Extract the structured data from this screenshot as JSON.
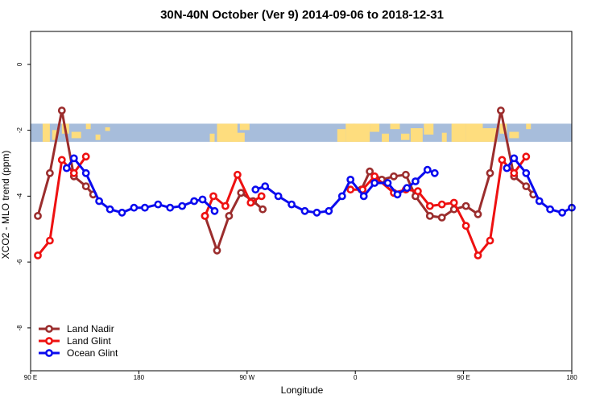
{
  "chart_data": {
    "type": "line",
    "title": "30N-40N October (Ver 9)   2014-09-06 to 2018-12-31",
    "xlabel": "Longitude",
    "ylabel": "XCO2 - MLO trend (ppm)",
    "xlim": [
      90,
      540
    ],
    "ylim": [
      -9.3,
      1.0
    ],
    "x_ticks": [
      {
        "value": 90,
        "label": "90 E"
      },
      {
        "value": 180,
        "label": "180"
      },
      {
        "value": 270,
        "label": "90 W"
      },
      {
        "value": 360,
        "label": "0"
      },
      {
        "value": 450,
        "label": "90 E"
      },
      {
        "value": 540,
        "label": "180"
      }
    ],
    "y_ticks": [
      {
        "value": 0,
        "label": "0"
      },
      {
        "value": -2,
        "label": "-2"
      },
      {
        "value": -4,
        "label": "-4"
      },
      {
        "value": -6,
        "label": "-6"
      },
      {
        "value": -8,
        "label": "-8"
      }
    ],
    "map_band": {
      "y_top": -1.8,
      "y_bottom": -2.35,
      "ocean_color": "#a7bddb",
      "land_color": "#fedd7e"
    },
    "series": [
      {
        "name": "Land Nadir",
        "color": "#9b2d2d",
        "segments": [
          [
            [
              96,
              -4.6
            ],
            [
              106,
              -3.3
            ],
            [
              116,
              -1.4
            ],
            [
              126,
              -3.4
            ],
            [
              136,
              -3.7
            ],
            [
              142,
              -3.95
            ]
          ],
          [
            [
              235,
              -4.6
            ],
            [
              245,
              -5.65
            ],
            [
              255,
              -4.6
            ],
            [
              265,
              -3.9
            ],
            [
              275,
              -4.15
            ],
            [
              283,
              -4.4
            ]
          ],
          [
            [
              365,
              -3.8
            ],
            [
              372,
              -3.25
            ],
            [
              382,
              -3.5
            ],
            [
              392,
              -3.4
            ],
            [
              402,
              -3.35
            ],
            [
              410,
              -4.0
            ],
            [
              422,
              -4.6
            ],
            [
              432,
              -4.65
            ],
            [
              442,
              -4.4
            ],
            [
              452,
              -4.3
            ],
            [
              462,
              -4.55
            ],
            [
              472,
              -3.3
            ],
            [
              481,
              -1.4
            ],
            [
              492,
              -3.4
            ],
            [
              502,
              -3.7
            ],
            [
              508,
              -3.95
            ]
          ]
        ]
      },
      {
        "name": "Land Glint",
        "color": "#ee1111",
        "segments": [
          [
            [
              96,
              -5.8
            ],
            [
              106,
              -5.35
            ],
            [
              116,
              -2.9
            ],
            [
              126,
              -3.3
            ],
            [
              136,
              -2.8
            ]
          ],
          [
            [
              235,
              -4.6
            ],
            [
              242,
              -4.0
            ],
            [
              252,
              -4.3
            ],
            [
              262,
              -3.35
            ],
            [
              273,
              -4.2
            ],
            [
              282,
              -4.0
            ]
          ],
          [
            [
              356,
              -3.8
            ],
            [
              366,
              -3.8
            ],
            [
              376,
              -3.4
            ],
            [
              392,
              -3.9
            ],
            [
              402,
              -3.8
            ],
            [
              412,
              -3.85
            ],
            [
              422,
              -4.3
            ],
            [
              432,
              -4.25
            ],
            [
              442,
              -4.2
            ],
            [
              452,
              -4.9
            ],
            [
              462,
              -5.8
            ],
            [
              472,
              -5.35
            ],
            [
              482,
              -2.9
            ],
            [
              492,
              -3.3
            ],
            [
              502,
              -2.8
            ]
          ]
        ]
      },
      {
        "name": "Ocean Glint",
        "color": "#0b0bee",
        "segments": [
          [
            [
              120,
              -3.15
            ],
            [
              126,
              -2.85
            ],
            [
              136,
              -3.3
            ],
            [
              147,
              -4.15
            ],
            [
              156,
              -4.4
            ],
            [
              166,
              -4.5
            ],
            [
              176,
              -4.35
            ],
            [
              185,
              -4.35
            ],
            [
              196,
              -4.25
            ],
            [
              206,
              -4.35
            ],
            [
              216,
              -4.3
            ],
            [
              226,
              -4.15
            ],
            [
              233,
              -4.1
            ],
            [
              243,
              -4.45
            ]
          ],
          [
            [
              277,
              -3.8
            ],
            [
              285,
              -3.7
            ],
            [
              296,
              -4.0
            ],
            [
              307,
              -4.25
            ],
            [
              318,
              -4.45
            ],
            [
              328,
              -4.5
            ],
            [
              338,
              -4.45
            ],
            [
              349,
              -4.0
            ],
            [
              356,
              -3.5
            ],
            [
              367,
              -4.0
            ],
            [
              376,
              -3.6
            ],
            [
              387,
              -3.6
            ],
            [
              395,
              -3.95
            ],
            [
              403,
              -3.75
            ],
            [
              410,
              -3.55
            ],
            [
              420,
              -3.2
            ],
            [
              426,
              -3.3
            ]
          ],
          [
            [
              486,
              -3.15
            ],
            [
              492,
              -2.85
            ],
            [
              502,
              -3.3
            ],
            [
              513,
              -4.15
            ],
            [
              522,
              -4.4
            ],
            [
              532,
              -4.5
            ],
            [
              540,
              -4.35
            ]
          ]
        ]
      }
    ],
    "legend": {
      "position": "bottom-left"
    }
  }
}
